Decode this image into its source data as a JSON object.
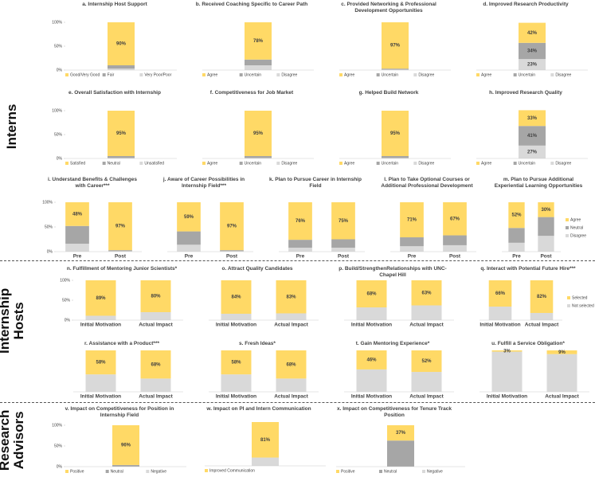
{
  "sections": [
    "Interns",
    "Internship Hosts",
    "Research Advisors"
  ],
  "chart_data": [
    {
      "type": "bar",
      "title": "a. Internship Host Support",
      "categories": [
        null
      ],
      "ylim": [
        0,
        100
      ],
      "yticks": [
        {
          "value": 0,
          "label": "0%"
        },
        {
          "value": 50,
          "label": "50%"
        },
        {
          "value": 100,
          "label": "100%"
        }
      ],
      "legend": "bottom",
      "series": [
        {
          "name": "Good/Very Good",
          "color": "#FFD966",
          "values": [
            90
          ],
          "value_labels": [
            "90%"
          ]
        },
        {
          "name": "Fair",
          "color": "#A6A6A6",
          "values": [
            7
          ]
        },
        {
          "name": "Very Poor/Poor",
          "color": "#D9D9D9",
          "values": [
            3
          ]
        }
      ]
    },
    {
      "type": "bar",
      "title": "b. Received Coaching Specific to Career Path",
      "categories": [
        null
      ],
      "ylim": [
        0,
        100
      ],
      "legend": "bottom",
      "series": [
        {
          "name": "Agree",
          "color": "#FFD966",
          "values": [
            78
          ],
          "value_labels": [
            "78%"
          ]
        },
        {
          "name": "Uncertain",
          "color": "#A6A6A6",
          "values": [
            12
          ]
        },
        {
          "name": "Disagree",
          "color": "#D9D9D9",
          "values": [
            10
          ]
        }
      ]
    },
    {
      "type": "bar",
      "title": "c. Provided Networking & Professional Development Opportunities",
      "categories": [
        null
      ],
      "ylim": [
        0,
        100
      ],
      "legend": "bottom",
      "series": [
        {
          "name": "Agree",
          "color": "#FFD966",
          "values": [
            97
          ],
          "value_labels": [
            "97%"
          ]
        },
        {
          "name": "Uncertain",
          "color": "#A6A6A6",
          "values": [
            2
          ]
        },
        {
          "name": "Disagree",
          "color": "#D9D9D9",
          "values": [
            1
          ]
        }
      ]
    },
    {
      "type": "bar",
      "title": "d. Improved Research Productivity",
      "categories": [
        null
      ],
      "ylim": [
        0,
        100
      ],
      "legend": "bottom",
      "series": [
        {
          "name": "Agree",
          "color": "#FFD966",
          "values": [
            42
          ],
          "value_labels": [
            "42%"
          ]
        },
        {
          "name": "Uncertain",
          "color": "#A6A6A6",
          "values": [
            34
          ],
          "value_labels": [
            "34%"
          ]
        },
        {
          "name": "Disagree",
          "color": "#D9D9D9",
          "values": [
            23
          ],
          "value_labels": [
            "23%"
          ]
        }
      ]
    },
    {
      "type": "bar",
      "title": "e. Overall Satisfaction with Internship",
      "categories": [
        null
      ],
      "ylim": [
        0,
        100
      ],
      "yticks": [
        {
          "value": 0,
          "label": "0%"
        },
        {
          "value": 50,
          "label": "50%"
        },
        {
          "value": 100,
          "label": "100%"
        }
      ],
      "legend": "bottom",
      "series": [
        {
          "name": "Satisfied",
          "color": "#FFD966",
          "values": [
            95
          ],
          "value_labels": [
            "95%"
          ]
        },
        {
          "name": "Neutral",
          "color": "#A6A6A6",
          "values": [
            4
          ]
        },
        {
          "name": "Unsatisfied",
          "color": "#D9D9D9",
          "values": [
            1
          ]
        }
      ]
    },
    {
      "type": "bar",
      "title": "f. Competitiveness for Job Market",
      "categories": [
        null
      ],
      "ylim": [
        0,
        100
      ],
      "legend": "bottom",
      "series": [
        {
          "name": "Agree",
          "color": "#FFD966",
          "values": [
            95
          ],
          "value_labels": [
            "95%"
          ]
        },
        {
          "name": "Uncertain",
          "color": "#A6A6A6",
          "values": [
            4
          ]
        },
        {
          "name": "Disagree",
          "color": "#D9D9D9",
          "values": [
            1
          ]
        }
      ]
    },
    {
      "type": "bar",
      "title": "g. Helped Build Network",
      "categories": [
        null
      ],
      "ylim": [
        0,
        100
      ],
      "legend": "bottom",
      "series": [
        {
          "name": "Agree",
          "color": "#FFD966",
          "values": [
            95
          ],
          "value_labels": [
            "95%"
          ]
        },
        {
          "name": "Uncertain",
          "color": "#A6A6A6",
          "values": [
            4
          ]
        },
        {
          "name": "Disagree",
          "color": "#D9D9D9",
          "values": [
            1
          ]
        }
      ]
    },
    {
      "type": "bar",
      "title": "h. Improved Research Quality",
      "categories": [
        null
      ],
      "ylim": [
        0,
        100
      ],
      "legend": "bottom",
      "series": [
        {
          "name": "Agree",
          "color": "#FFD966",
          "values": [
            33
          ],
          "value_labels": [
            "33%"
          ]
        },
        {
          "name": "Uncertain",
          "color": "#A6A6A6",
          "values": [
            41
          ],
          "value_labels": [
            "41%"
          ]
        },
        {
          "name": "Disagree",
          "color": "#D9D9D9",
          "values": [
            27
          ],
          "value_labels": [
            "27%"
          ]
        }
      ]
    },
    {
      "type": "bar",
      "title": "i. Understand Benefits & Challenges with Career***",
      "categories": [
        "Pre",
        "Post"
      ],
      "ylim": [
        0,
        100
      ],
      "yticks": [
        {
          "value": 0,
          "label": "0%"
        },
        {
          "value": 50,
          "label": "50%"
        },
        {
          "value": 100,
          "label": "100%"
        }
      ],
      "series": [
        {
          "name": "Agree",
          "color": "#FFD966",
          "values": [
            48,
            97
          ],
          "value_labels": [
            "48%",
            "97%"
          ]
        },
        {
          "name": "Neutral",
          "color": "#A6A6A6",
          "values": [
            36,
            2
          ]
        },
        {
          "name": "Disagree",
          "color": "#D9D9D9",
          "values": [
            16,
            1
          ]
        }
      ]
    },
    {
      "type": "bar",
      "title": "j. Aware of Career Possibilities in Internship Field***",
      "categories": [
        "Pre",
        "Post"
      ],
      "ylim": [
        0,
        100
      ],
      "series": [
        {
          "name": "Agree",
          "color": "#FFD966",
          "values": [
            59,
            97
          ],
          "value_labels": [
            "59%",
            "97%"
          ]
        },
        {
          "name": "Neutral",
          "color": "#A6A6A6",
          "values": [
            27,
            2
          ]
        },
        {
          "name": "Disagree",
          "color": "#D9D9D9",
          "values": [
            14,
            1
          ]
        }
      ]
    },
    {
      "type": "bar",
      "title": "k. Plan to Pursue Career in Internship Field",
      "categories": [
        "Pre",
        "Post"
      ],
      "ylim": [
        0,
        100
      ],
      "series": [
        {
          "name": "Agree",
          "color": "#FFD966",
          "values": [
            76,
            75
          ],
          "value_labels": [
            "76%",
            "75%"
          ]
        },
        {
          "name": "Neutral",
          "color": "#A6A6A6",
          "values": [
            16,
            17
          ]
        },
        {
          "name": "Disagree",
          "color": "#D9D9D9",
          "values": [
            8,
            8
          ]
        }
      ]
    },
    {
      "type": "bar",
      "title": "l. Plan to Take Optional Courses or Additional Professional Development",
      "categories": [
        "Pre",
        "Post"
      ],
      "ylim": [
        0,
        100
      ],
      "series": [
        {
          "name": "Agree",
          "color": "#FFD966",
          "values": [
            71,
            67
          ],
          "value_labels": [
            "71%",
            "67%"
          ]
        },
        {
          "name": "Neutral",
          "color": "#A6A6A6",
          "values": [
            18,
            20
          ]
        },
        {
          "name": "Disagree",
          "color": "#D9D9D9",
          "values": [
            11,
            13
          ]
        }
      ]
    },
    {
      "type": "bar",
      "title": "m. Plan to Pursue Additional Experiential Learning Opportunities",
      "categories": [
        "Pre",
        "Post"
      ],
      "ylim": [
        0,
        100
      ],
      "legend": "right",
      "series": [
        {
          "name": "Agree",
          "color": "#FFD966",
          "values": [
            52,
            30
          ],
          "value_labels": [
            "52%",
            "30%"
          ]
        },
        {
          "name": "Neutral",
          "color": "#A6A6A6",
          "values": [
            30,
            38
          ]
        },
        {
          "name": "Disagree",
          "color": "#D9D9D9",
          "values": [
            18,
            32
          ]
        }
      ]
    },
    {
      "type": "bar",
      "title": "n. Fulfillment of Mentoring Junior Scientists*",
      "categories": [
        "Initial Motivation",
        "Actual Impact"
      ],
      "ylim": [
        0,
        100
      ],
      "yticks": [
        {
          "value": 0,
          "label": "0%"
        },
        {
          "value": 50,
          "label": "50%"
        },
        {
          "value": 100,
          "label": "100%"
        }
      ],
      "series": [
        {
          "name": "Selected",
          "color": "#FFD966",
          "values": [
            89,
            80
          ],
          "value_labels": [
            "89%",
            "80%"
          ]
        },
        {
          "name": "Not selected",
          "color": "#D9D9D9",
          "values": [
            11,
            20
          ]
        }
      ]
    },
    {
      "type": "bar",
      "title": "o. Attract Quality Candidates",
      "categories": [
        "Initial Motivation",
        "Actual Impact"
      ],
      "ylim": [
        0,
        100
      ],
      "series": [
        {
          "name": "Selected",
          "color": "#FFD966",
          "values": [
            84,
            83
          ],
          "value_labels": [
            "84%",
            "83%"
          ]
        },
        {
          "name": "Not selected",
          "color": "#D9D9D9",
          "values": [
            16,
            17
          ]
        }
      ]
    },
    {
      "type": "bar",
      "title": "p. Build/StrengthenRelationships with UNC-Chapel Hill",
      "categories": [
        "Initial Motivation",
        "Actual Impact"
      ],
      "ylim": [
        0,
        100
      ],
      "series": [
        {
          "name": "Selected",
          "color": "#FFD966",
          "values": [
            68,
            63
          ],
          "value_labels": [
            "68%",
            "63%"
          ]
        },
        {
          "name": "Not selected",
          "color": "#D9D9D9",
          "values": [
            32,
            37
          ]
        }
      ]
    },
    {
      "type": "bar",
      "title": "q. Interact with Potential Future Hire***",
      "categories": [
        "Initial Motivation",
        "Actual Impact"
      ],
      "ylim": [
        0,
        100
      ],
      "legend": "right",
      "series": [
        {
          "name": "Selected",
          "color": "#FFD966",
          "values": [
            66,
            82
          ],
          "value_labels": [
            "66%",
            "82%"
          ]
        },
        {
          "name": "Not selected",
          "color": "#D9D9D9",
          "values": [
            34,
            18
          ]
        }
      ]
    },
    {
      "type": "bar",
      "title": "r. Assistance with a Product***",
      "categories": [
        "Initial Motivation",
        "Actual Impact"
      ],
      "ylim": [
        0,
        100
      ],
      "series": [
        {
          "name": "Selected",
          "color": "#FFD966",
          "values": [
            58,
            68
          ],
          "value_labels": [
            "58%",
            "68%"
          ]
        },
        {
          "name": "Not selected",
          "color": "#D9D9D9",
          "values": [
            42,
            32
          ]
        }
      ]
    },
    {
      "type": "bar",
      "title": "s. Fresh Ideas*",
      "categories": [
        "Initial Motivation",
        "Actual Impact"
      ],
      "ylim": [
        0,
        100
      ],
      "series": [
        {
          "name": "Selected",
          "color": "#FFD966",
          "values": [
            58,
            68
          ],
          "value_labels": [
            "58%",
            "68%"
          ]
        },
        {
          "name": "Not selected",
          "color": "#D9D9D9",
          "values": [
            42,
            32
          ]
        }
      ]
    },
    {
      "type": "bar",
      "title": "t. Gain Mentoring Experience*",
      "categories": [
        "Initial Motivation",
        "Actual Impact"
      ],
      "ylim": [
        0,
        100
      ],
      "series": [
        {
          "name": "Selected",
          "color": "#FFD966",
          "values": [
            46,
            52
          ],
          "value_labels": [
            "46%",
            "52%"
          ]
        },
        {
          "name": "Not selected",
          "color": "#D9D9D9",
          "values": [
            54,
            48
          ]
        }
      ]
    },
    {
      "type": "bar",
      "title": "u. Fulfill a Service Obligation*",
      "categories": [
        "Initial Motivation",
        "Actual Impact"
      ],
      "ylim": [
        0,
        100
      ],
      "series": [
        {
          "name": "Selected",
          "color": "#FFD966",
          "values": [
            3,
            9
          ],
          "value_labels": [
            "3%",
            "9%"
          ]
        },
        {
          "name": "Not selected",
          "color": "#D9D9D9",
          "values": [
            97,
            91
          ]
        }
      ]
    },
    {
      "type": "bar",
      "title": "v. Impact on Competitiveness for Position in Internship Field",
      "categories": [
        null
      ],
      "ylim": [
        0,
        100
      ],
      "yticks": [
        {
          "value": 0,
          "label": "0%"
        },
        {
          "value": 50,
          "label": "50%"
        },
        {
          "value": 100,
          "label": "100%"
        }
      ],
      "legend": "bottom",
      "series": [
        {
          "name": "Positive",
          "color": "#FFD966",
          "values": [
            96
          ],
          "value_labels": [
            "96%"
          ]
        },
        {
          "name": "Neutral",
          "color": "#A6A6A6",
          "values": [
            4
          ]
        },
        {
          "name": "Negative",
          "color": "#D9D9D9",
          "values": [
            0
          ]
        }
      ]
    },
    {
      "type": "bar",
      "title": "w. Impact on PI and Intern Communication",
      "categories": [
        null
      ],
      "ylim": [
        0,
        100
      ],
      "legend": "bottom",
      "series": [
        {
          "name": "Improved Communication",
          "color": "#FFD966",
          "values": [
            81
          ],
          "value_labels": [
            "81%"
          ]
        },
        {
          "color": "#D9D9D9",
          "values": [
            19
          ]
        }
      ]
    },
    {
      "type": "bar",
      "title": "x. Impact on Competitiveness for Tenure Track Position",
      "categories": [
        null
      ],
      "ylim": [
        0,
        100
      ],
      "legend": "bottom",
      "series": [
        {
          "name": "Positive",
          "color": "#FFD966",
          "values": [
            37
          ],
          "value_labels": [
            "37%"
          ]
        },
        {
          "name": "Neutral",
          "color": "#A6A6A6",
          "values": [
            63
          ]
        },
        {
          "name": "Negative",
          "color": "#D9D9D9",
          "values": [
            0
          ]
        }
      ]
    }
  ]
}
